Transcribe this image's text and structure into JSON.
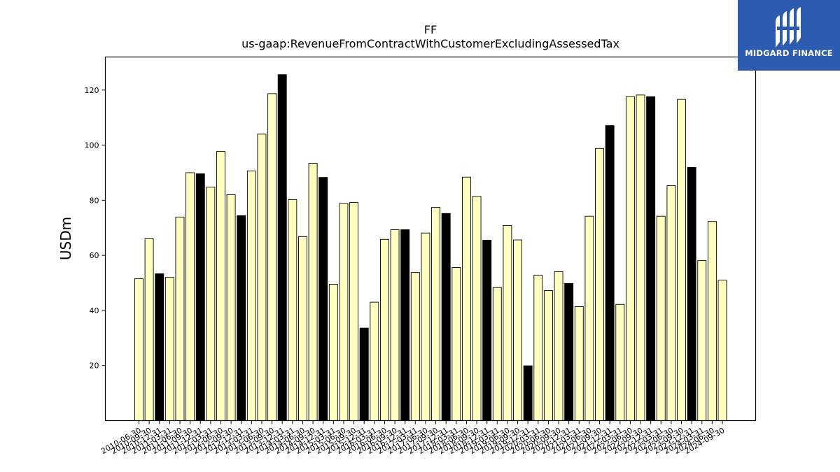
{
  "logo": {
    "text": "MIDGARD FINANCE",
    "color": "#2d5bb0"
  },
  "chart_data": {
    "type": "bar",
    "title": "FF",
    "subtitle": "us-gaap:RevenueFromContractWithCustomerExcludingAssessedTax",
    "xlabel": "",
    "ylabel": "USDm",
    "ylim": [
      0,
      132
    ],
    "yticks": [
      20,
      40,
      60,
      80,
      100,
      120
    ],
    "grid": false,
    "colors": {
      "quarter": "#ffffbf",
      "annual": "#000000",
      "edge": "#000000"
    },
    "categories": [
      "2010-06-30",
      "2010-09-30",
      "2010-12-31",
      "2011-03-31",
      "2011-06-30",
      "2011-09-30",
      "2011-12-31",
      "2012-03-31",
      "2012-06-30",
      "2012-09-30",
      "2012-12-31",
      "2013-03-31",
      "2013-06-30",
      "2013-09-30",
      "2013-12-31",
      "2014-03-31",
      "2014-06-30",
      "2014-09-30",
      "2014-12-31",
      "2015-03-31",
      "2015-06-30",
      "2015-09-30",
      "2015-12-31",
      "2016-03-31",
      "2016-06-30",
      "2016-09-30",
      "2016-12-31",
      "2017-03-31",
      "2017-06-30",
      "2017-09-30",
      "2017-12-31",
      "2018-03-31",
      "2018-06-30",
      "2018-09-30",
      "2018-12-31",
      "2019-03-31",
      "2019-06-30",
      "2019-09-30",
      "2019-12-31",
      "2020-03-31",
      "2020-06-30",
      "2020-09-30",
      "2020-12-31",
      "2021-03-31",
      "2021-06-30",
      "2021-09-30",
      "2021-12-31",
      "2022-03-31",
      "2022-06-30",
      "2022-09-30",
      "2022-12-31",
      "2023-03-31",
      "2023-06-30",
      "2023-09-30",
      "2023-12-31",
      "2024-03-31",
      "2024-06-30",
      "2024-09-30"
    ],
    "values": [
      51.5,
      66.0,
      53.3,
      52.0,
      73.9,
      90.0,
      89.6,
      84.8,
      97.7,
      82.0,
      74.4,
      90.6,
      104.0,
      118.7,
      125.6,
      80.2,
      66.8,
      93.4,
      88.3,
      49.5,
      78.8,
      79.2,
      33.6,
      43.0,
      65.8,
      69.3,
      69.3,
      53.8,
      68.1,
      77.4,
      75.2,
      55.6,
      88.4,
      81.4,
      65.5,
      48.3,
      70.8,
      65.6,
      19.9,
      52.8,
      47.2,
      54.1,
      49.8,
      41.4,
      74.2,
      98.8,
      107.1,
      42.2,
      117.6,
      118.2,
      117.6,
      74.2,
      85.3,
      116.6,
      91.9,
      58.1,
      72.3,
      51.0
    ],
    "highlight_annual": [
      false,
      false,
      true,
      false,
      false,
      false,
      true,
      false,
      false,
      false,
      true,
      false,
      false,
      false,
      true,
      false,
      false,
      false,
      true,
      false,
      false,
      false,
      true,
      false,
      false,
      false,
      true,
      false,
      false,
      false,
      true,
      false,
      false,
      false,
      true,
      false,
      false,
      false,
      true,
      false,
      false,
      false,
      true,
      false,
      false,
      false,
      true,
      false,
      false,
      false,
      true,
      false,
      false,
      false,
      true,
      false,
      false,
      false
    ]
  }
}
